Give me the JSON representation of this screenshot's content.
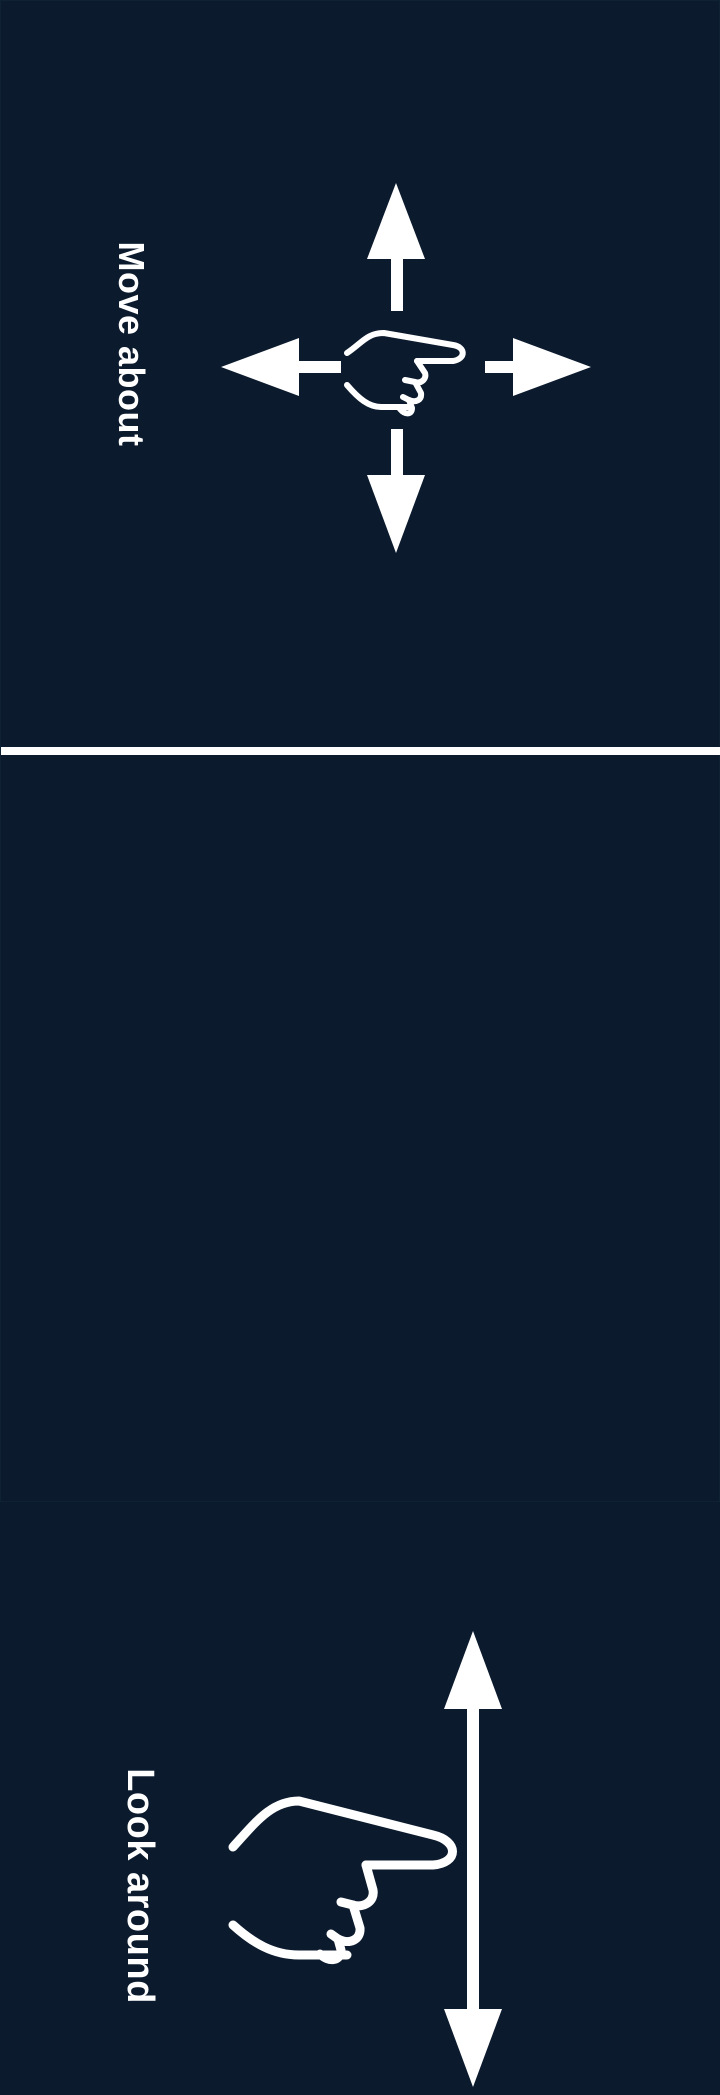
{
  "controls": {
    "move": {
      "label": "Move about",
      "icon": "four-way-arrow-pointing-hand-icon"
    },
    "look": {
      "label": "Look around",
      "icon": "vertical-arrow-pointing-hand-icon"
    }
  },
  "colors": {
    "background": "#0b1a2d",
    "foreground": "#ffffff"
  }
}
